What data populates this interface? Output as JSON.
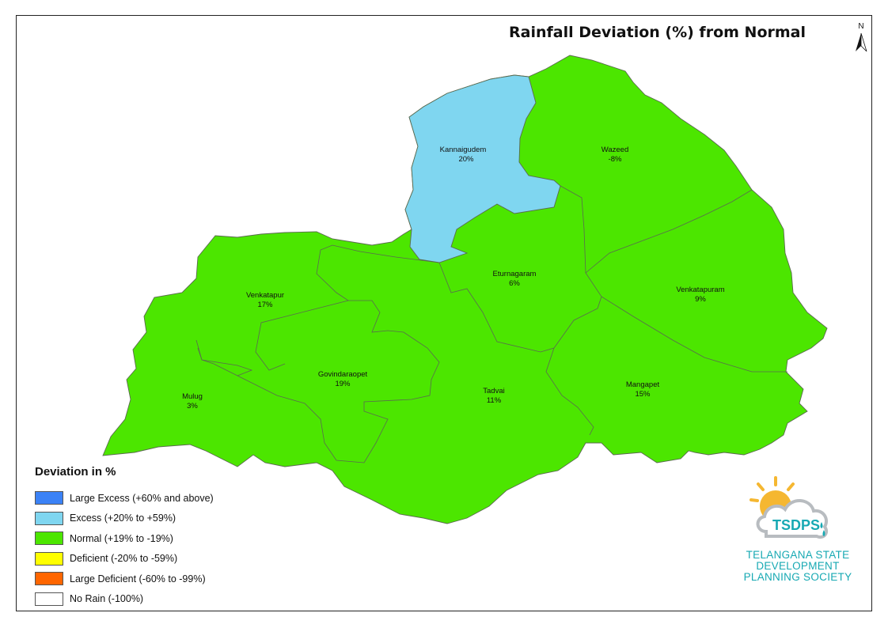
{
  "title": "Rainfall Deviation (%) from Normal",
  "north_label": "N",
  "colors": {
    "large_excess": "#3b82f6",
    "excess": "#7fd6f0",
    "normal": "#4ce600",
    "deficient": "#ffff00",
    "large_deficient": "#ff6600",
    "no_rain": "#ffffff",
    "boundary": "#5a6a50"
  },
  "mandals": [
    {
      "name": "Kannaigudem",
      "value": "20%",
      "category": "excess"
    },
    {
      "name": "Wazeed",
      "value": "-8%",
      "category": "normal"
    },
    {
      "name": "Eturnagaram",
      "value": "6%",
      "category": "normal"
    },
    {
      "name": "Venkatapuram",
      "value": "9%",
      "category": "normal"
    },
    {
      "name": "Venkatapur",
      "value": "17%",
      "category": "normal"
    },
    {
      "name": "Govindaraopet",
      "value": "19%",
      "category": "normal"
    },
    {
      "name": "Tadvai",
      "value": "11%",
      "category": "normal"
    },
    {
      "name": "Mangapet",
      "value": "15%",
      "category": "normal"
    },
    {
      "name": "Mulug",
      "value": "3%",
      "category": "normal"
    }
  ],
  "legend": {
    "title": "Deviation in %",
    "items": [
      {
        "label": "Large Excess (+60% and above)",
        "color": "#3b82f6"
      },
      {
        "label": "Excess (+20% to +59%)",
        "color": "#7fd6f0"
      },
      {
        "label": "Normal (+19% to -19%)",
        "color": "#4ce600"
      },
      {
        "label": "Deficient (-20% to -59%)",
        "color": "#ffff00"
      },
      {
        "label": "Large Deficient (-60% to -99%)",
        "color": "#ff6600"
      },
      {
        "label": "No Rain (-100%)",
        "color": "#ffffff"
      }
    ]
  },
  "logo": {
    "abbr": "TSDPS",
    "line1": "TELANGANA STATE",
    "line2": "DEVELOPMENT",
    "line3": "PLANNING SOCIETY"
  }
}
